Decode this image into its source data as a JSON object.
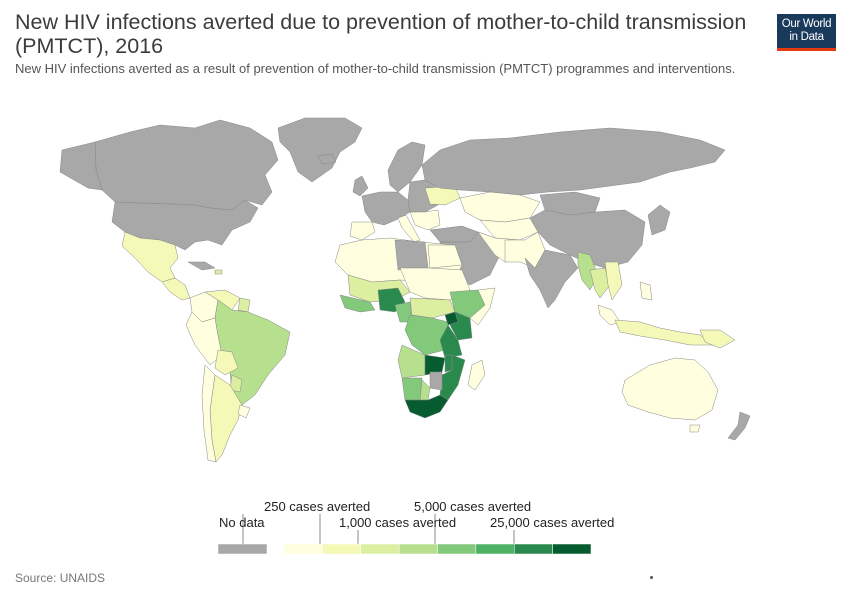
{
  "header": {
    "title": "New HIV infections averted due to prevention of mother-to-child transmission (PMTCT), 2016",
    "subtitle": "New HIV infections averted as a result of prevention of mother-to-child transmission (PMTCT) programmes and interventions."
  },
  "logo": {
    "line1": "Our World",
    "line2": "in Data",
    "bg_color": "#1a3a5c",
    "accent_color": "#e63912"
  },
  "legend": {
    "no_data_label": "No data",
    "no_data_color": "#a8a8a8",
    "labels": {
      "l250": "250 cases averted",
      "l1000": "1,000 cases averted",
      "l5000": "5,000 cases averted",
      "l25000": "25,000 cases averted"
    },
    "colors": [
      "#ffffe0",
      "#f5f9b8",
      "#dcefa0",
      "#b6e08e",
      "#82c97c",
      "#4eb266",
      "#2a8a4d",
      "#075c2f"
    ]
  },
  "source": "Source: UNAIDS"
}
